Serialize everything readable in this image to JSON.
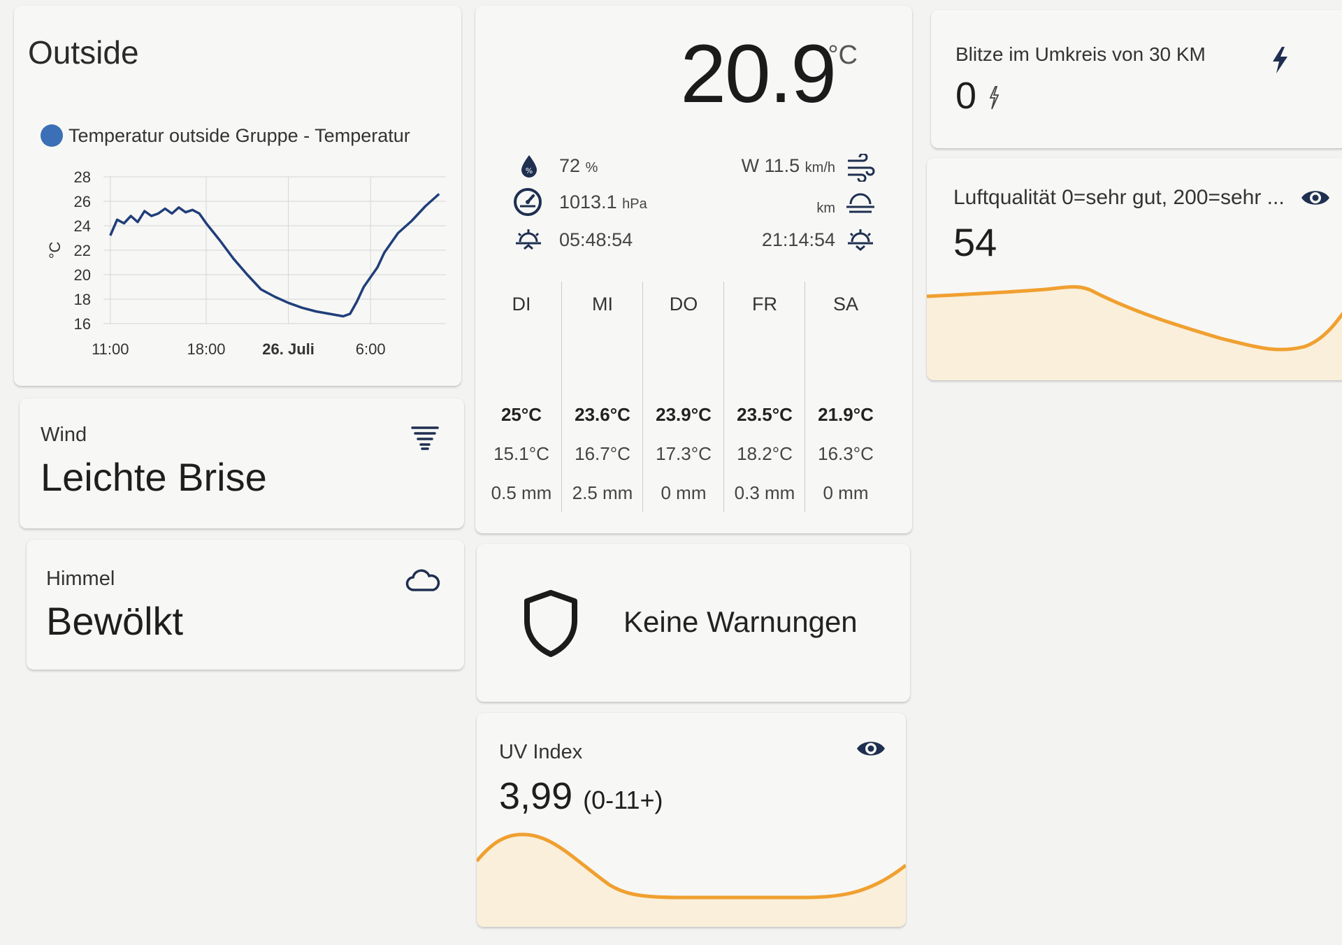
{
  "outside": {
    "title": "Outside",
    "legend": "Temperatur outside Gruppe - Temperatur",
    "yunit": "°C"
  },
  "chart_data": {
    "type": "line",
    "title": "",
    "series": [
      {
        "name": "Temperatur outside Gruppe - Temperatur",
        "color": "#1f3e7a",
        "x": [
          11.0,
          11.5,
          12.0,
          12.5,
          13.0,
          13.5,
          14.0,
          14.5,
          15.0,
          15.5,
          16.0,
          16.5,
          17.0,
          17.5,
          18.0,
          19.0,
          20.0,
          21.0,
          22.0,
          23.0,
          24.0,
          25.0,
          26.0,
          27.0,
          28.0,
          28.5,
          29.0,
          29.5,
          30.0,
          30.5,
          31.0,
          31.5,
          32.0,
          33.0,
          34.0,
          35.0
        ],
        "values": [
          23.2,
          24.5,
          24.2,
          24.8,
          24.3,
          25.2,
          24.8,
          25.0,
          25.4,
          25.0,
          25.5,
          25.1,
          25.3,
          25.0,
          24.2,
          22.8,
          21.3,
          20.0,
          18.8,
          18.2,
          17.7,
          17.3,
          17.0,
          16.8,
          16.6,
          16.8,
          17.8,
          19.0,
          19.8,
          20.6,
          21.8,
          22.6,
          23.4,
          24.4,
          25.6,
          26.6
        ]
      }
    ],
    "xticks": [
      "11:00",
      "18:00",
      "26. Juli",
      "6:00"
    ],
    "xtick_positions": [
      11,
      18,
      24,
      30
    ],
    "xlim": [
      10.5,
      35.5
    ],
    "yticks": [
      16,
      18,
      20,
      22,
      24,
      26,
      28
    ],
    "ylim": [
      16,
      28
    ],
    "ylabel": "°C",
    "grid": true
  },
  "weather": {
    "temperature": "20.9",
    "unit": "°C",
    "humidity": "72",
    "humidity_unit": "%",
    "pressure": "1013.1",
    "pressure_unit": "hPa",
    "sunrise": "05:48:54",
    "wind": "W 11.5",
    "wind_unit": "km/h",
    "visibility_unit": "km",
    "sunset": "21:14:54",
    "forecast": [
      {
        "day": "DI",
        "high": "25°C",
        "low": "15.1°C",
        "rain": "0.5 mm"
      },
      {
        "day": "MI",
        "high": "23.6°C",
        "low": "16.7°C",
        "rain": "2.5 mm"
      },
      {
        "day": "DO",
        "high": "23.9°C",
        "low": "17.3°C",
        "rain": "0 mm"
      },
      {
        "day": "FR",
        "high": "23.5°C",
        "low": "18.2°C",
        "rain": "0.3 mm"
      },
      {
        "day": "SA",
        "high": "21.9°C",
        "low": "16.3°C",
        "rain": "0 mm"
      }
    ]
  },
  "blitz": {
    "label": "Blitze im Umkreis von 30 KM",
    "value": "0"
  },
  "luft": {
    "label": "Luftqualität 0=sehr gut, 200=sehr ...",
    "value": "54"
  },
  "wind": {
    "label": "Wind",
    "value": "Leichte Brise"
  },
  "himmel": {
    "label": "Himmel",
    "value": "Bewölkt"
  },
  "warn": {
    "text": "Keine Warnungen"
  },
  "uv": {
    "label": "UV Index",
    "value": "3,99",
    "range": "(0-11+)"
  },
  "colors": {
    "line": "#1f3e7a",
    "legend_dot": "#3b6fb6",
    "sparkline": "#f0a030",
    "sparkline_fill": "#fbe9c8"
  },
  "icons": {
    "humidity": "water-percent-icon",
    "pressure": "gauge-icon",
    "sunrise": "sunrise-icon",
    "wind": "wind-icon",
    "visibility": "fog-icon",
    "sunset": "sunset-icon",
    "lightning": "flash-icon",
    "air": "eye-icon",
    "wind_card": "weather-windy-icon",
    "sky": "cloud-icon",
    "warnings": "shield-icon",
    "uv": "eye-icon"
  }
}
